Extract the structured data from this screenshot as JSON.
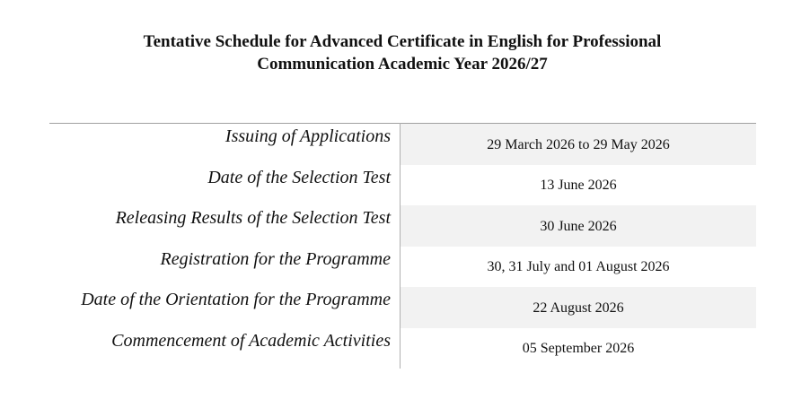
{
  "title": {
    "line1": "Tentative Schedule for Advanced Certificate in English for Professional",
    "line2": "Communication Academic Year 2026/27"
  },
  "schedule": [
    {
      "event": "Issuing of Applications",
      "date": "29 March 2026 to 29 May 2026"
    },
    {
      "event": "Date of the Selection Test",
      "date": "13 June 2026"
    },
    {
      "event": "Releasing Results of the Selection Test",
      "date": "30 June 2026"
    },
    {
      "event": "Registration for the Programme",
      "date": "30, 31 July and 01 August 2026"
    },
    {
      "event": "Date of the Orientation for the Programme",
      "date": "22 August 2026"
    },
    {
      "event": "Commencement of Academic Activities",
      "date": "05 September 2026"
    }
  ],
  "colors": {
    "row_shade": "#f2f2f2",
    "rule": "#a0a0a0"
  }
}
